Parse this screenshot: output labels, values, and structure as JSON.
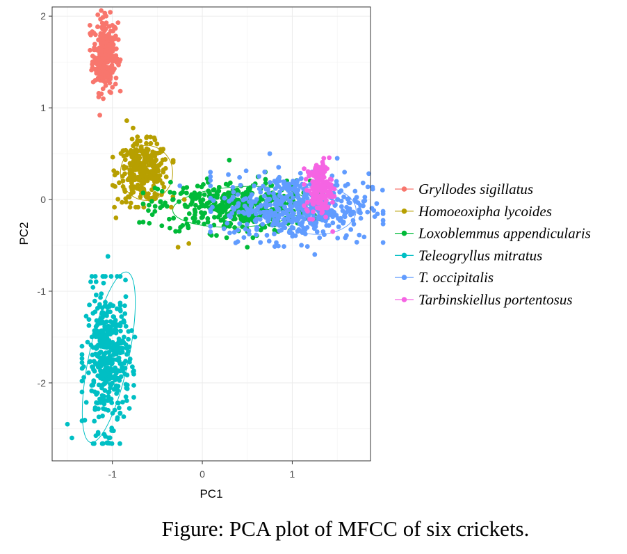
{
  "chart_data": {
    "type": "scatter",
    "title": "",
    "xlabel": "PC1",
    "ylabel": "PC2",
    "xlim": [
      -1.67,
      1.87
    ],
    "ylim": [
      -2.85,
      2.1
    ],
    "xticks": [
      -1,
      0,
      1
    ],
    "yticks": [
      -2,
      -1,
      0,
      1,
      2
    ],
    "xtick_labels": [
      "-1",
      "0",
      "1"
    ],
    "ytick_labels": [
      "-2",
      "-1",
      "0",
      "1",
      "2"
    ],
    "grid": true,
    "legend_position": "right",
    "series": [
      {
        "name": "Gryllodes sigillatus",
        "color": "#F8766D",
        "cluster": {
          "cx": -1.08,
          "cy": 1.58,
          "sx": 0.07,
          "sy": 0.2,
          "n": 260
        },
        "ellipse": null,
        "points": [
          [
            -1.14,
            0.92
          ],
          [
            -1.07,
            2.0
          ],
          [
            -1.25,
            1.9
          ],
          [
            -1.0,
            1.9
          ]
        ]
      },
      {
        "name": "Homoeoxipha lycoides",
        "color": "#B79F00",
        "cluster": {
          "cx": -0.66,
          "cy": 0.3,
          "sx": 0.14,
          "sy": 0.16,
          "n": 300
        },
        "ellipse": {
          "cx": -0.62,
          "cy": 0.29,
          "rx": 0.29,
          "ry": 0.3,
          "angle": 0
        },
        "points": [
          [
            -0.84,
            0.86
          ],
          [
            -0.96,
            -0.2
          ],
          [
            -0.27,
            -0.52
          ],
          [
            -0.15,
            -0.48
          ],
          [
            -0.2,
            0.0
          ],
          [
            -0.77,
            0.78
          ]
        ]
      },
      {
        "name": "Loxoblemmus appendicularis",
        "color": "#00BA38",
        "cluster": {
          "cx": 0.35,
          "cy": -0.08,
          "sx": 0.42,
          "sy": 0.14,
          "n": 420
        },
        "ellipse": {
          "cx": 0.42,
          "cy": -0.08,
          "rx": 0.75,
          "ry": 0.22,
          "angle": -3
        },
        "points": [
          [
            -0.7,
            -0.25
          ],
          [
            -0.6,
            -0.12
          ],
          [
            0.3,
            0.43
          ],
          [
            0.5,
            -0.52
          ],
          [
            0.7,
            0.3
          ]
        ]
      },
      {
        "name": "Teleogryllus mitratus",
        "color": "#00BFC4",
        "cluster": {
          "cx": -1.05,
          "cy": -1.75,
          "sx": 0.12,
          "sy": 0.38,
          "n": 420
        },
        "ellipse": {
          "cx": -1.04,
          "cy": -1.72,
          "rx": 0.22,
          "ry": 0.95,
          "angle": 12
        },
        "points": [
          [
            -1.05,
            -0.62
          ],
          [
            -1.5,
            -2.45
          ],
          [
            -1.45,
            -2.6
          ],
          [
            -1.05,
            -2.65
          ],
          [
            -0.75,
            -1.5
          ]
        ]
      },
      {
        "name": "T. occipitalis",
        "color": "#619CFF",
        "cluster": {
          "cx": 1.05,
          "cy": -0.08,
          "sx": 0.4,
          "sy": 0.18,
          "n": 520
        },
        "ellipse": {
          "cx": 1.28,
          "cy": -0.12,
          "rx": 0.43,
          "ry": 0.26,
          "angle": 0
        },
        "points": [
          [
            -0.25,
            0.15
          ],
          [
            0.75,
            0.5
          ],
          [
            1.5,
            0.45
          ],
          [
            1.7,
            0.0
          ],
          [
            1.25,
            -0.6
          ]
        ]
      },
      {
        "name": "Tarbinskiellus portentosus",
        "color": "#F564E3",
        "cluster": {
          "cx": 1.3,
          "cy": 0.12,
          "sx": 0.07,
          "sy": 0.14,
          "n": 170
        },
        "ellipse": null,
        "points": [
          [
            1.35,
            0.45
          ],
          [
            1.45,
            -0.35
          ]
        ]
      }
    ]
  },
  "caption": "Figure: PCA plot of MFCC of six crickets."
}
